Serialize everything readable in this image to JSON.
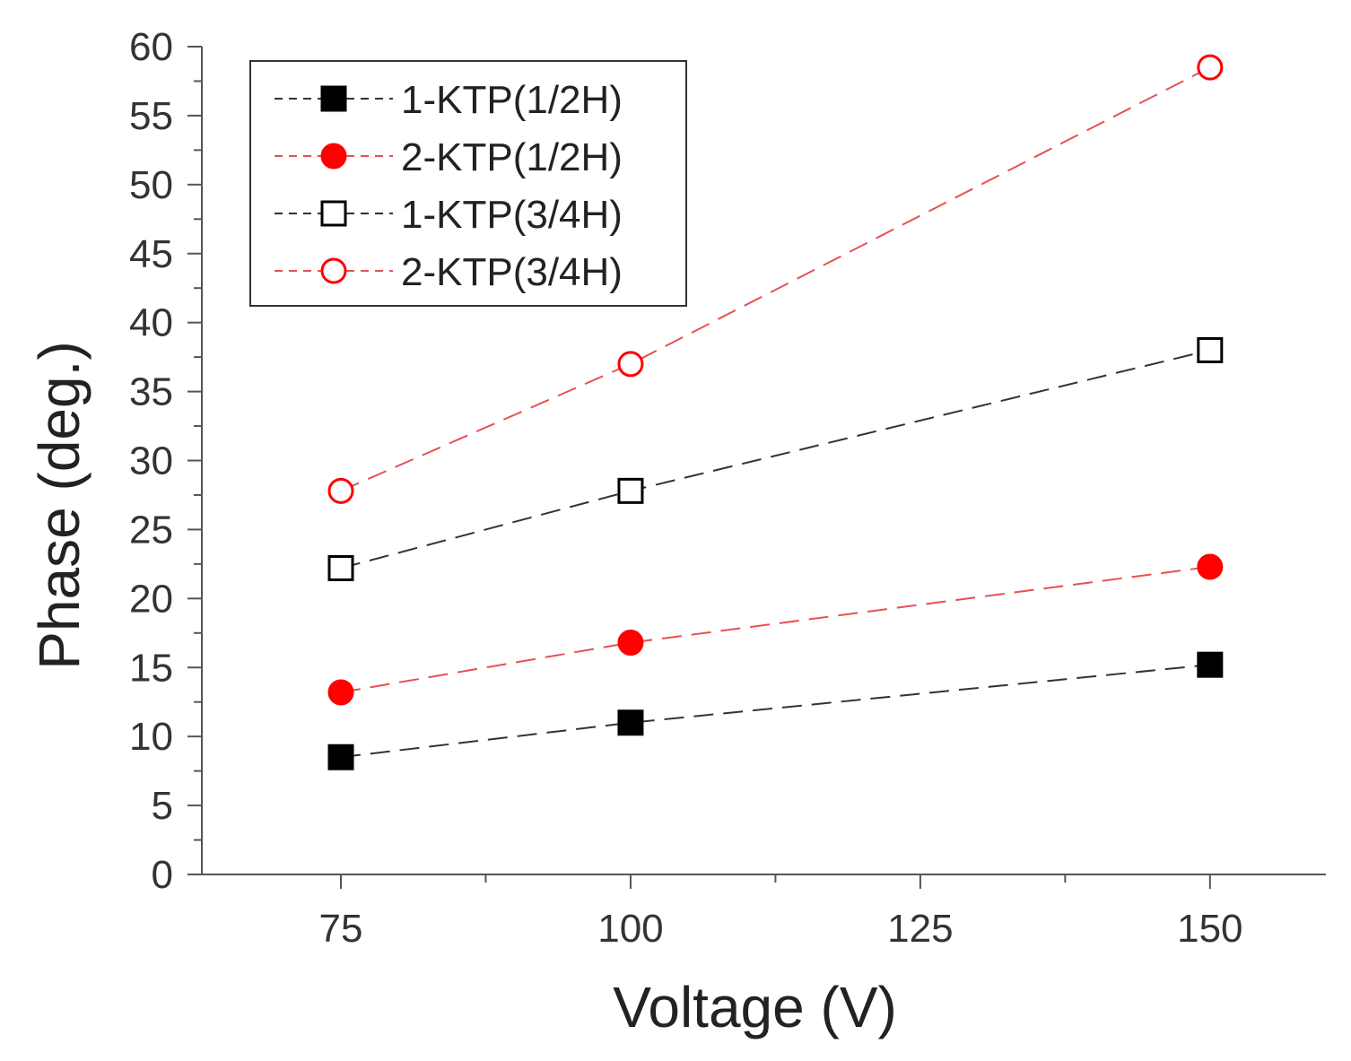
{
  "chart_data": {
    "type": "line",
    "title": "",
    "xlabel": "Voltage (V)",
    "ylabel": "Phase (deg.)",
    "xlim": [
      63,
      160
    ],
    "ylim": [
      0,
      60
    ],
    "x_ticks": [
      75,
      100,
      125,
      150
    ],
    "x_tick_labels": [
      "75",
      "100",
      "125",
      "150"
    ],
    "y_ticks": [
      0,
      5,
      10,
      15,
      20,
      25,
      30,
      35,
      40,
      45,
      50,
      55,
      60
    ],
    "y_tick_labels": [
      "0",
      "5",
      "10",
      "15",
      "20",
      "25",
      "30",
      "35",
      "40",
      "45",
      "50",
      "55",
      "60"
    ],
    "grid": false,
    "legend_position": "top-left",
    "x": [
      75,
      100,
      150
    ],
    "series": [
      {
        "name": "1-KTP(1/2H)",
        "values": [
          8.5,
          11.0,
          15.2
        ],
        "color": "#000000",
        "line_color": "#333333",
        "marker": "square",
        "filled": true
      },
      {
        "name": "2-KTP(1/2H)",
        "values": [
          13.2,
          16.8,
          22.3
        ],
        "color": "#ff0000",
        "line_color": "#e85050",
        "marker": "circle",
        "filled": true
      },
      {
        "name": "1-KTP(3/4H)",
        "values": [
          22.2,
          27.8,
          38.0
        ],
        "color": "#000000",
        "line_color": "#333333",
        "marker": "square",
        "filled": false
      },
      {
        "name": "2-KTP(3/4H)",
        "values": [
          27.8,
          37.0,
          58.5
        ],
        "color": "#ff0000",
        "line_color": "#e85050",
        "marker": "circle",
        "filled": false
      }
    ]
  }
}
